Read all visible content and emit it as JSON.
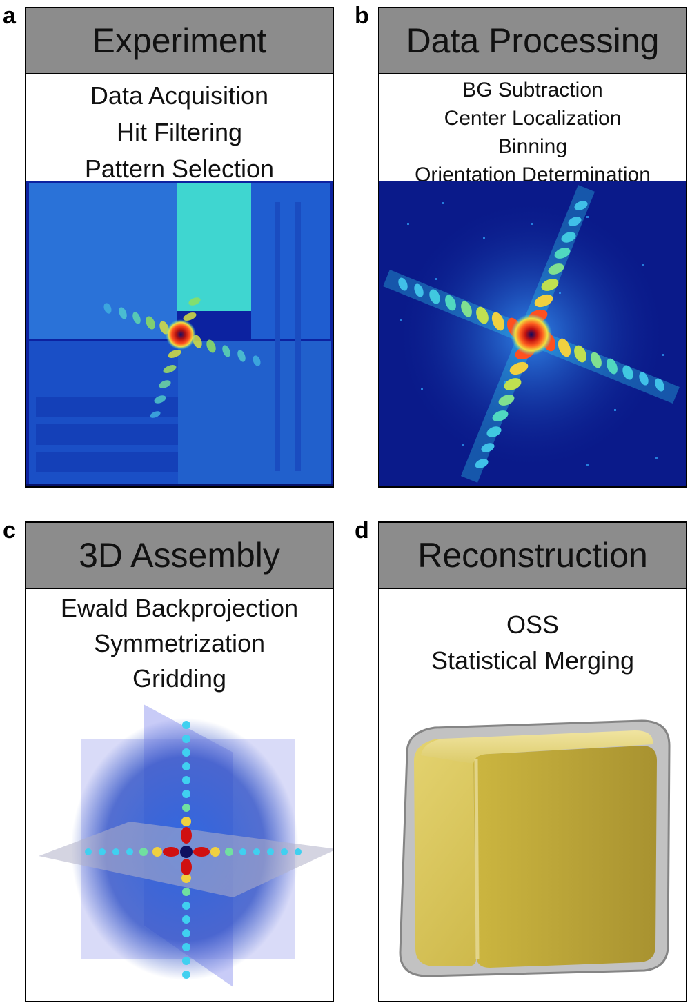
{
  "panels": [
    {
      "letter": "a",
      "title": "Experiment",
      "steps": [
        "Data Acquisition",
        "Hit Filtering",
        "Pattern Selection"
      ]
    },
    {
      "letter": "b",
      "title": "Data Processing",
      "steps": [
        "BG Subtraction",
        "Center Localization",
        "Binning",
        "Orientation Determination"
      ]
    },
    {
      "letter": "c",
      "title": "3D Assembly",
      "steps": [
        "Ewald Backprojection",
        "Symmetrization",
        "Gridding"
      ]
    },
    {
      "letter": "d",
      "title": "Reconstruction",
      "steps": [
        "OSS",
        "Statistical Merging"
      ]
    }
  ],
  "colors": {
    "header_bg": "#8c8c8c",
    "detector_dark": "#0a1a8a",
    "detector_mid": "#1d5fd6",
    "cyan": "#3fe0d8",
    "peak_red": "#d01010",
    "cube_gold": "#d9c45a",
    "shell_gray": "#9a9a9a"
  }
}
